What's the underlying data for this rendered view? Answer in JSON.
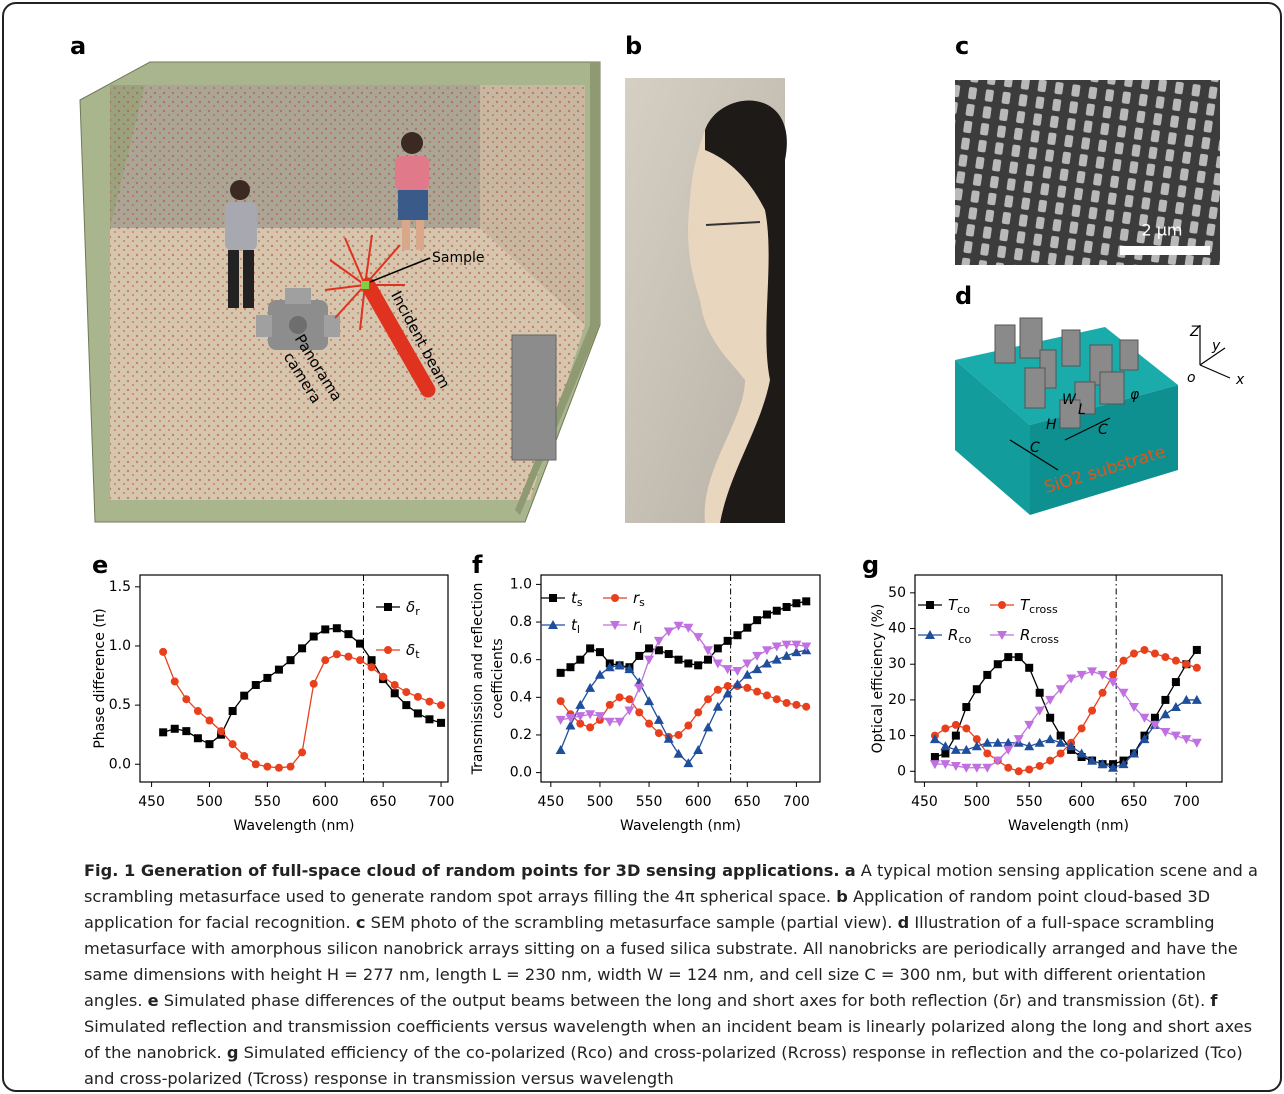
{
  "panel_letters": [
    "a",
    "b",
    "c",
    "d",
    "e",
    "f",
    "g"
  ],
  "panel_a": {
    "sample": "Sample",
    "beam": "Incident beam",
    "camera": [
      "Panorama",
      "camera"
    ]
  },
  "panel_c": {
    "scale": "2 μm"
  },
  "panel_d": {
    "axes": [
      "Z",
      "y",
      "x",
      "o"
    ],
    "dims": [
      "W",
      "L",
      "H",
      "C",
      "C",
      "φ"
    ],
    "substrate": "SiO2 substrate"
  },
  "chart_data": [
    {
      "type": "line",
      "xlabel": "Wavelength (nm)",
      "ylabel": [
        "Phase difference (π)"
      ],
      "xlim": [
        440,
        706
      ],
      "ylim": [
        -0.15,
        1.6
      ],
      "xticks": [
        450,
        500,
        550,
        600,
        650,
        700
      ],
      "yticks": [
        {
          "value": 0,
          "label": "0.0"
        },
        0.5,
        {
          "value": 1,
          "label": "1.0"
        },
        1.5
      ],
      "vline": 633,
      "x": [
        460,
        470,
        480,
        490,
        500,
        510,
        520,
        530,
        540,
        550,
        560,
        570,
        580,
        590,
        600,
        610,
        620,
        630,
        640,
        650,
        660,
        670,
        680,
        690,
        700
      ],
      "series": [
        {
          "name": "δr",
          "color": "#000000",
          "marker": "square",
          "values": [
            0.27,
            0.3,
            0.28,
            0.22,
            0.17,
            0.25,
            0.45,
            0.58,
            0.67,
            0.73,
            0.8,
            0.88,
            0.98,
            1.08,
            1.14,
            1.15,
            1.1,
            1.02,
            0.88,
            0.72,
            0.6,
            0.5,
            0.43,
            0.38,
            0.35
          ]
        },
        {
          "name": "δt",
          "color": "#e8401c",
          "marker": "circle",
          "values": [
            0.95,
            0.7,
            0.55,
            0.45,
            0.37,
            0.28,
            0.17,
            0.07,
            0.0,
            -0.02,
            -0.03,
            -0.02,
            0.1,
            0.68,
            0.88,
            0.93,
            0.91,
            0.88,
            0.82,
            0.74,
            0.67,
            0.61,
            0.57,
            0.53,
            0.5
          ]
        }
      ]
    },
    {
      "type": "line",
      "xlabel": "Wavelength (nm)",
      "ylabel": [
        "Transmission and reflection",
        "coefficients"
      ],
      "xlim": [
        440,
        724
      ],
      "ylim": [
        -0.05,
        1.05
      ],
      "xticks": [
        450,
        500,
        550,
        600,
        650,
        700
      ],
      "yticks": [
        {
          "value": 0,
          "label": "0.0"
        },
        0.2,
        0.4,
        0.6,
        0.8,
        {
          "value": 1,
          "label": "1.0"
        }
      ],
      "vline": 633,
      "x": [
        460,
        470,
        480,
        490,
        500,
        510,
        520,
        530,
        540,
        550,
        560,
        570,
        580,
        590,
        600,
        610,
        620,
        630,
        640,
        650,
        660,
        670,
        680,
        690,
        700,
        710
      ],
      "series": [
        {
          "name": "ts",
          "color": "#000000",
          "marker": "square",
          "values": [
            0.53,
            0.56,
            0.6,
            0.66,
            0.64,
            0.58,
            0.57,
            0.56,
            0.62,
            0.66,
            0.65,
            0.63,
            0.6,
            0.58,
            0.57,
            0.6,
            0.66,
            0.7,
            0.73,
            0.77,
            0.81,
            0.84,
            0.86,
            0.88,
            0.9,
            0.91
          ]
        },
        {
          "name": "rs",
          "color": "#e8401c",
          "marker": "circle",
          "values": [
            0.38,
            0.31,
            0.26,
            0.24,
            0.28,
            0.36,
            0.4,
            0.39,
            0.32,
            0.26,
            0.21,
            0.19,
            0.2,
            0.25,
            0.32,
            0.39,
            0.44,
            0.46,
            0.46,
            0.45,
            0.43,
            0.41,
            0.39,
            0.37,
            0.36,
            0.35
          ]
        },
        {
          "name": "tl",
          "color": "#1f4e9c",
          "marker": "triangle-up",
          "values": [
            0.12,
            0.25,
            0.36,
            0.45,
            0.52,
            0.56,
            0.57,
            0.55,
            0.48,
            0.38,
            0.28,
            0.18,
            0.1,
            0.05,
            0.12,
            0.24,
            0.35,
            0.42,
            0.47,
            0.52,
            0.55,
            0.58,
            0.6,
            0.62,
            0.64,
            0.65
          ]
        },
        {
          "name": "rl",
          "color": "#c070e0",
          "marker": "triangle-down",
          "values": [
            0.28,
            0.29,
            0.3,
            0.31,
            0.3,
            0.27,
            0.27,
            0.33,
            0.45,
            0.6,
            0.7,
            0.75,
            0.78,
            0.77,
            0.72,
            0.65,
            0.58,
            0.55,
            0.54,
            0.58,
            0.62,
            0.65,
            0.67,
            0.68,
            0.68,
            0.67
          ]
        }
      ]
    },
    {
      "type": "line",
      "xlabel": "Wavelength (nm)",
      "ylabel": [
        "Optical efficiency (%)"
      ],
      "xlim": [
        441,
        734
      ],
      "ylim": [
        -3,
        55
      ],
      "xticks": [
        450,
        500,
        550,
        600,
        650,
        700
      ],
      "yticks": [
        0,
        10,
        20,
        30,
        40,
        50
      ],
      "vline": 633,
      "x": [
        460,
        470,
        480,
        490,
        500,
        510,
        520,
        530,
        540,
        550,
        560,
        570,
        580,
        590,
        600,
        610,
        620,
        630,
        640,
        650,
        660,
        670,
        680,
        690,
        700,
        710
      ],
      "series": [
        {
          "name": "Tco",
          "color": "#000000",
          "marker": "square",
          "values": [
            4,
            5,
            10,
            18,
            23,
            27,
            30,
            32,
            32,
            29,
            22,
            15,
            10,
            6,
            4,
            3,
            2,
            2,
            3,
            5,
            10,
            15,
            20,
            25,
            30,
            34
          ]
        },
        {
          "name": "Tcross",
          "color": "#e8401c",
          "marker": "circle",
          "values": [
            10,
            12,
            13,
            12,
            9,
            5,
            3,
            1,
            0,
            0.5,
            1.5,
            3,
            5,
            8,
            12,
            17,
            22,
            27,
            31,
            33,
            34,
            33,
            32,
            31,
            30,
            29
          ]
        },
        {
          "name": "Rco",
          "color": "#1f4e9c",
          "marker": "triangle-up",
          "values": [
            9,
            7,
            6,
            6,
            7,
            8,
            8,
            8,
            8,
            7,
            8,
            9,
            8,
            7,
            5,
            3,
            2,
            1,
            2,
            5,
            9,
            13,
            16,
            18,
            20,
            20
          ]
        },
        {
          "name": "Rcross",
          "color": "#c070e0",
          "marker": "triangle-down",
          "values": [
            2,
            2,
            1.5,
            1,
            1,
            1,
            3,
            6,
            9,
            13,
            17,
            20,
            23,
            26,
            27,
            28,
            27,
            25,
            22,
            18,
            15,
            13,
            11,
            10,
            9,
            8
          ]
        }
      ]
    }
  ],
  "caption": {
    "title": "Fig. 1 Generation of full-space cloud of random points for 3D sensing applications.",
    "items": [
      {
        "label": "a",
        "text": "A typical motion sensing application scene and a scrambling metasurface used to generate random spot arrays filling the 4π spherical space."
      },
      {
        "label": "b",
        "text": "Application of random point cloud-based 3D application for facial recognition."
      },
      {
        "label": "c",
        "text": "SEM photo of the scrambling metasurface sample (partial view)."
      },
      {
        "label": "d",
        "text": "Illustration of a full-space scrambling metasurface with amorphous silicon nanobrick arrays sitting on a fused silica substrate. All nanobricks are periodically arranged and have the same dimensions with height H = 277 nm, length L = 230 nm, width W = 124 nm, and cell size C = 300 nm, but with different orientation angles."
      },
      {
        "label": "e",
        "text": "Simulated phase differences of the output beams between the long and short axes for both reflection (δr) and transmission (δt)."
      },
      {
        "label": "f",
        "text": "Simulated reflection and transmission coefficients versus wavelength when an incident beam is linearly polarized along the long and short axes of the nanobrick."
      },
      {
        "label": "g",
        "text": "Simulated efficiency of the co-polarized (Rco) and cross-polarized (Rcross) response in reflection and the co-polarized (Tco) and cross-polarized (Tcross) response in transmission versus wavelength"
      }
    ]
  }
}
